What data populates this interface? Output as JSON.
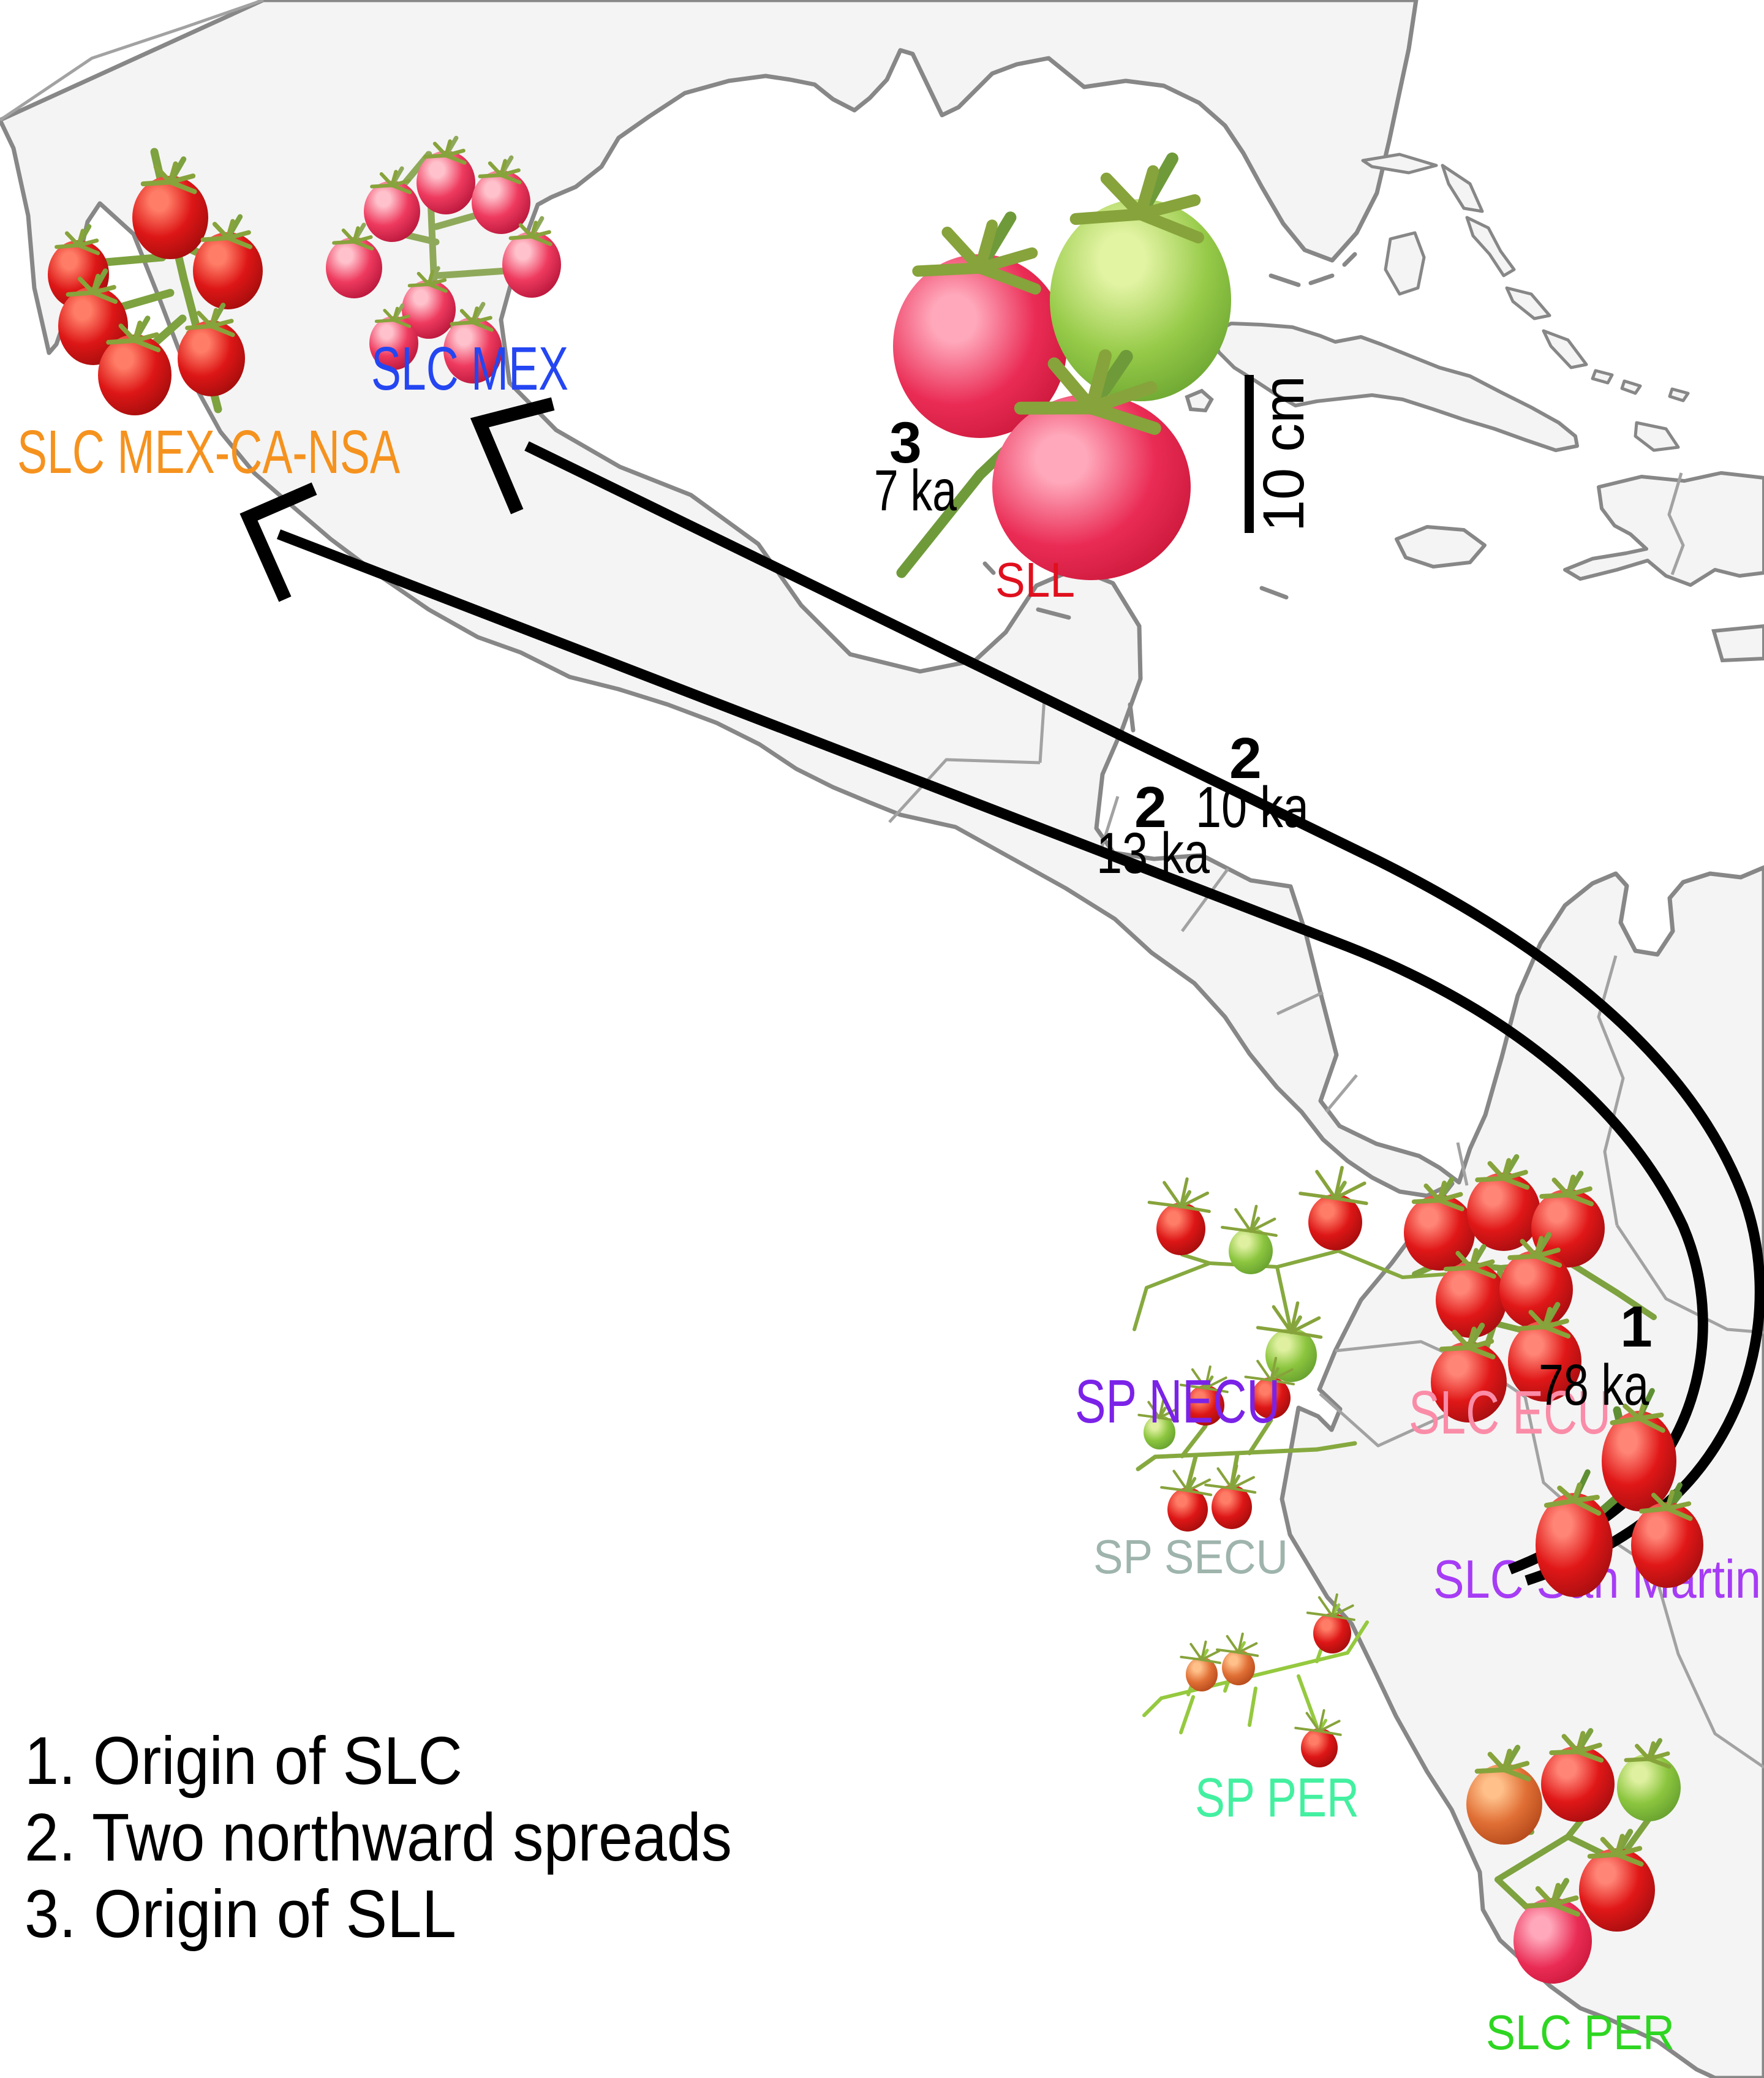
{
  "figure": {
    "type": "tomato-domestication-map",
    "background": "#ffffff"
  },
  "map": {
    "land_fill": "#f4f4f4",
    "coast_color": "#878787",
    "border_color": "#a2a2a2",
    "sea_color": "#ffffff"
  },
  "scale_bar": {
    "label": "10 cm",
    "bar_color": "#000000"
  },
  "legend": {
    "items": [
      {
        "text": "1. Origin of SLC"
      },
      {
        "text": "2. Two northward spreads"
      },
      {
        "text": "3. Origin of SLL"
      }
    ]
  },
  "labels": {
    "slc_mex_ca_nsa": {
      "text": "SLC MEX-CA-NSA",
      "color": "#F5921E"
    },
    "slc_mex": {
      "text": "SLC MEX",
      "color": "#2446F2"
    },
    "sll": {
      "text": "SLL",
      "color": "#E0101E"
    },
    "sp_necu": {
      "text": "SP NECU",
      "color": "#7B22E8"
    },
    "slc_ecu": {
      "text": "SLC ECU",
      "color": "#FA8CA8"
    },
    "sp_secu": {
      "text": "SP SECU",
      "color": "#9EB4AC"
    },
    "slc_san_martin": {
      "text": "SLC San Martin",
      "color": "#A63CF5"
    },
    "sp_per": {
      "text": "SP PER",
      "color": "#43F0A0"
    },
    "slc_per": {
      "text": "SLC PER",
      "color": "#2ED621"
    }
  },
  "annotations": {
    "origin_slc": {
      "number": "1",
      "time": "78 ka"
    },
    "spread_west": {
      "number": "2",
      "time": "13 ka"
    },
    "spread_east": {
      "number": "2",
      "time": "10 ka"
    },
    "origin_sll": {
      "number": "3",
      "time": "7 ka"
    }
  },
  "arrows": {
    "color": "#000000",
    "count": 2,
    "meaning": "Two northward spreads"
  },
  "tomato_clusters": [
    {
      "id": "slc-mex-ca-nsa",
      "stem_color": "#7da23f",
      "stem_width": 13,
      "spiky": false,
      "fruits": [
        [
          278,
          355,
          62,
          68,
          "red"
        ],
        [
          372,
          442,
          57,
          63,
          "red"
        ],
        [
          128,
          448,
          50,
          56,
          "red"
        ],
        [
          152,
          532,
          57,
          64,
          "red"
        ],
        [
          220,
          612,
          60,
          66,
          "red"
        ],
        [
          345,
          585,
          55,
          62,
          "red"
        ]
      ],
      "stems": [
        [
          252,
          248,
          300,
          455
        ],
        [
          300,
          455,
          356,
          668
        ],
        [
          262,
          320,
          278,
          300
        ],
        [
          285,
          395,
          340,
          420
        ],
        [
          265,
          420,
          150,
          430
        ],
        [
          278,
          478,
          160,
          512
        ],
        [
          298,
          520,
          230,
          580
        ],
        [
          310,
          545,
          342,
          560
        ]
      ]
    },
    {
      "id": "slc-mex",
      "stem_color": "#8fa95a",
      "stem_width": 11,
      "spiky": false,
      "fruits": [
        [
          640,
          345,
          46,
          50,
          "pink"
        ],
        [
          728,
          298,
          48,
          52,
          "pink"
        ],
        [
          818,
          330,
          48,
          52,
          "pink"
        ],
        [
          578,
          437,
          46,
          50,
          "pink"
        ],
        [
          868,
          432,
          48,
          54,
          "pink"
        ],
        [
          700,
          505,
          44,
          48,
          "pink"
        ],
        [
          772,
          572,
          48,
          54,
          "pink"
        ],
        [
          643,
          560,
          40,
          44,
          "pink"
        ]
      ],
      "stems": [
        [
          700,
          252,
          712,
          540
        ],
        [
          712,
          395,
          648,
          380
        ],
        [
          712,
          370,
          800,
          345
        ],
        [
          712,
          450,
          856,
          440
        ],
        [
          712,
          500,
          662,
          535
        ],
        [
          712,
          515,
          768,
          550
        ],
        [
          700,
          252,
          660,
          300
        ],
        [
          700,
          300,
          740,
          320
        ]
      ]
    },
    {
      "id": "sll",
      "stem_color": "#6f9a3a",
      "stem_width": 17,
      "spiky": false,
      "fruits": [
        [
          1600,
          565,
          142,
          150,
          "sllred"
        ],
        [
          1862,
          490,
          148,
          165,
          "sllgreen"
        ],
        [
          1782,
          795,
          162,
          152,
          "sllred"
        ]
      ],
      "stems": [
        [
          1472,
          935,
          1600,
          775
        ],
        [
          1600,
          775,
          1700,
          680
        ],
        [
          1700,
          680,
          1800,
          668
        ],
        [
          1700,
          680,
          1640,
          580
        ],
        [
          1800,
          668,
          1850,
          630
        ],
        [
          1800,
          668,
          1790,
          720
        ]
      ]
    },
    {
      "id": "sp-necu",
      "stem_color": "#86a93f",
      "stem_width": 6,
      "spiky": true,
      "fruits": [
        [
          1928,
          2006,
          40,
          43,
          "red"
        ],
        [
          2042,
          2042,
          36,
          38,
          "green"
        ],
        [
          2180,
          1995,
          44,
          46,
          "red"
        ],
        [
          2108,
          2212,
          42,
          44,
          "green"
        ]
      ],
      "stems": [
        [
          1872,
          2102,
          1975,
          2062
        ],
        [
          1975,
          2062,
          2085,
          2068
        ],
        [
          2085,
          2068,
          2185,
          2042
        ],
        [
          2085,
          2068,
          2106,
          2165
        ],
        [
          2185,
          2042,
          2290,
          2085
        ],
        [
          1975,
          2062,
          1930,
          2048
        ],
        [
          1872,
          2102,
          1852,
          2170
        ],
        [
          2290,
          2085,
          2360,
          2080
        ]
      ]
    },
    {
      "id": "slc-ecu",
      "stem_color": "#7da23f",
      "stem_width": 10,
      "spiky": false,
      "fruits": [
        [
          2350,
          2012,
          58,
          62,
          "slcred"
        ],
        [
          2455,
          1978,
          60,
          64,
          "slcred"
        ],
        [
          2560,
          2005,
          60,
          64,
          "slcred"
        ],
        [
          2402,
          2122,
          58,
          62,
          "slcred"
        ],
        [
          2508,
          2105,
          60,
          64,
          "slcred"
        ],
        [
          2398,
          2256,
          62,
          66,
          "slcred"
        ],
        [
          2522,
          2222,
          60,
          66,
          "slcred"
        ]
      ],
      "stems": [
        [
          2355,
          2060,
          2450,
          2070
        ],
        [
          2450,
          2070,
          2560,
          2060
        ],
        [
          2450,
          2070,
          2440,
          2160
        ],
        [
          2440,
          2160,
          2420,
          2220
        ],
        [
          2560,
          2060,
          2640,
          2110
        ],
        [
          2640,
          2110,
          2700,
          2150
        ],
        [
          2440,
          2160,
          2520,
          2180
        ],
        [
          2355,
          2060,
          2310,
          2080
        ]
      ]
    },
    {
      "id": "sp-secu",
      "stem_color": "#86a93f",
      "stem_width": 7,
      "spiky": true,
      "fruits": [
        [
          1893,
          2338,
          26,
          28,
          "green"
        ],
        [
          1968,
          2294,
          31,
          33,
          "red"
        ],
        [
          2075,
          2282,
          32,
          34,
          "red"
        ],
        [
          1939,
          2464,
          33,
          36,
          "red"
        ],
        [
          2011,
          2460,
          33,
          36,
          "red"
        ]
      ],
      "stems": [
        [
          1886,
          2378,
          2150,
          2366
        ],
        [
          2150,
          2366,
          2212,
          2356
        ],
        [
          1930,
          2377,
          1968,
          2328
        ],
        [
          2040,
          2372,
          2075,
          2318
        ],
        [
          1952,
          2378,
          1939,
          2428
        ],
        [
          2020,
          2375,
          2011,
          2425
        ],
        [
          1886,
          2378,
          1858,
          2398
        ]
      ]
    },
    {
      "id": "slc-san-martin",
      "stem_color": "#5f8f33",
      "stem_width": 13,
      "spiky": false,
      "fruits": [
        [
          2676,
          2385,
          61,
          82,
          "slcred"
        ],
        [
          2570,
          2522,
          63,
          85,
          "slcred"
        ],
        [
          2722,
          2522,
          59,
          70,
          "slcred"
        ]
      ],
      "stems": [
        [
          2640,
          2302,
          2668,
          2420
        ],
        [
          2668,
          2420,
          2602,
          2478
        ],
        [
          2668,
          2420,
          2718,
          2468
        ],
        [
          2602,
          2478,
          2572,
          2450
        ],
        [
          2718,
          2468,
          2740,
          2440
        ]
      ]
    },
    {
      "id": "sp-per",
      "stem_color": "#95c93f",
      "stem_width": 6,
      "spiky": true,
      "fruits": [
        [
          1962,
          2733,
          26,
          28,
          "orange"
        ],
        [
          2022,
          2722,
          27,
          29,
          "orange"
        ],
        [
          2175,
          2666,
          31,
          33,
          "red"
        ],
        [
          2154,
          2853,
          30,
          32,
          "red"
        ]
      ],
      "stems": [
        [
          1896,
          2772,
          2200,
          2698
        ],
        [
          2200,
          2698,
          2232,
          2648
        ],
        [
          1940,
          2766,
          1962,
          2705
        ],
        [
          2000,
          2760,
          2022,
          2696
        ],
        [
          2150,
          2712,
          2175,
          2640
        ],
        [
          2120,
          2736,
          2150,
          2818
        ],
        [
          1896,
          2772,
          1868,
          2800
        ],
        [
          1948,
          2770,
          1928,
          2828
        ],
        [
          2050,
          2756,
          2040,
          2816
        ]
      ]
    },
    {
      "id": "slc-per",
      "stem_color": "#7da23f",
      "stem_width": 10,
      "spiky": false,
      "fruits": [
        [
          2456,
          2945,
          62,
          66,
          "orange"
        ],
        [
          2576,
          2912,
          60,
          62,
          "slcred"
        ],
        [
          2692,
          2918,
          52,
          55,
          "green"
        ],
        [
          2640,
          3085,
          62,
          68,
          "slcred"
        ],
        [
          2535,
          3168,
          64,
          70,
          "sllred"
        ]
      ],
      "stems": [
        [
          2445,
          3068,
          2560,
          2998
        ],
        [
          2560,
          2998,
          2600,
          2948
        ],
        [
          2560,
          2998,
          2642,
          3038
        ],
        [
          2445,
          3068,
          2500,
          3120
        ],
        [
          2642,
          3038,
          2700,
          2958
        ],
        [
          2600,
          2948,
          2576,
          2968
        ],
        [
          2500,
          2990,
          2458,
          2995
        ]
      ]
    }
  ]
}
